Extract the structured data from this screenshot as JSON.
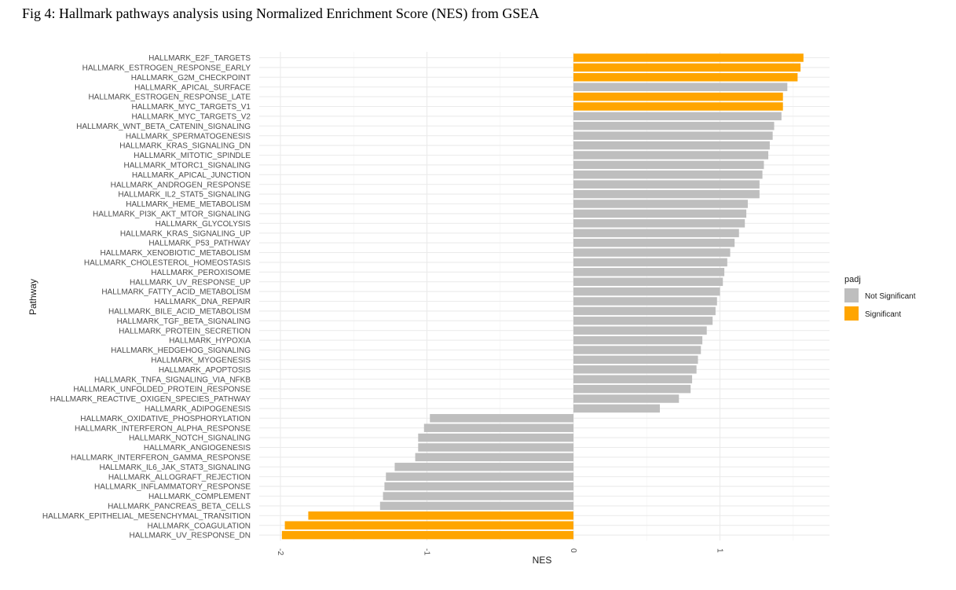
{
  "caption": "Fig 4: Hallmark pathways analysis using Normalized Enrichment Score (NES) from GSEA",
  "chart_data": {
    "type": "bar",
    "orientation": "horizontal",
    "xlabel": "NES",
    "ylabel": "Pathway",
    "xlim": [
      -2.0,
      1.75
    ],
    "x_ticks": [
      -2,
      -1,
      0,
      1
    ],
    "x_tick_labels": [
      "-2",
      "-1",
      "0",
      "1"
    ],
    "grid": true,
    "legend": {
      "title": "padj",
      "position": "right",
      "entries": [
        {
          "label": "Not Significant",
          "color": "#bebebe"
        },
        {
          "label": "Significant",
          "color": "#ffa500"
        }
      ]
    },
    "colors": {
      "Not Significant": "#bebebe",
      "Significant": "#ffa500"
    },
    "bars": [
      {
        "pathway": "HALLMARK_E2F_TARGETS",
        "nes": 1.57,
        "padj": "Significant"
      },
      {
        "pathway": "HALLMARK_ESTROGEN_RESPONSE_EARLY",
        "nes": 1.55,
        "padj": "Significant"
      },
      {
        "pathway": "HALLMARK_G2M_CHECKPOINT",
        "nes": 1.53,
        "padj": "Significant"
      },
      {
        "pathway": "HALLMARK_APICAL_SURFACE",
        "nes": 1.46,
        "padj": "Not Significant"
      },
      {
        "pathway": "HALLMARK_ESTROGEN_RESPONSE_LATE",
        "nes": 1.43,
        "padj": "Significant"
      },
      {
        "pathway": "HALLMARK_MYC_TARGETS_V1",
        "nes": 1.43,
        "padj": "Significant"
      },
      {
        "pathway": "HALLMARK_MYC_TARGETS_V2",
        "nes": 1.42,
        "padj": "Not Significant"
      },
      {
        "pathway": "HALLMARK_WNT_BETA_CATENIN_SIGNALING",
        "nes": 1.37,
        "padj": "Not Significant"
      },
      {
        "pathway": "HALLMARK_SPERMATOGENESIS",
        "nes": 1.36,
        "padj": "Not Significant"
      },
      {
        "pathway": "HALLMARK_KRAS_SIGNALING_DN",
        "nes": 1.34,
        "padj": "Not Significant"
      },
      {
        "pathway": "HALLMARK_MITOTIC_SPINDLE",
        "nes": 1.33,
        "padj": "Not Significant"
      },
      {
        "pathway": "HALLMARK_MTORC1_SIGNALING",
        "nes": 1.3,
        "padj": "Not Significant"
      },
      {
        "pathway": "HALLMARK_APICAL_JUNCTION",
        "nes": 1.29,
        "padj": "Not Significant"
      },
      {
        "pathway": "HALLMARK_ANDROGEN_RESPONSE",
        "nes": 1.27,
        "padj": "Not Significant"
      },
      {
        "pathway": "HALLMARK_IL2_STAT5_SIGNALING",
        "nes": 1.27,
        "padj": "Not Significant"
      },
      {
        "pathway": "HALLMARK_HEME_METABOLISM",
        "nes": 1.19,
        "padj": "Not Significant"
      },
      {
        "pathway": "HALLMARK_PI3K_AKT_MTOR_SIGNALING",
        "nes": 1.18,
        "padj": "Not Significant"
      },
      {
        "pathway": "HALLMARK_GLYCOLYSIS",
        "nes": 1.17,
        "padj": "Not Significant"
      },
      {
        "pathway": "HALLMARK_KRAS_SIGNALING_UP",
        "nes": 1.13,
        "padj": "Not Significant"
      },
      {
        "pathway": "HALLMARK_P53_PATHWAY",
        "nes": 1.1,
        "padj": "Not Significant"
      },
      {
        "pathway": "HALLMARK_XENOBIOTIC_METABOLISM",
        "nes": 1.07,
        "padj": "Not Significant"
      },
      {
        "pathway": "HALLMARK_CHOLESTEROL_HOMEOSTASIS",
        "nes": 1.05,
        "padj": "Not Significant"
      },
      {
        "pathway": "HALLMARK_PEROXISOME",
        "nes": 1.03,
        "padj": "Not Significant"
      },
      {
        "pathway": "HALLMARK_UV_RESPONSE_UP",
        "nes": 1.02,
        "padj": "Not Significant"
      },
      {
        "pathway": "HALLMARK_FATTY_ACID_METABOLISM",
        "nes": 1.0,
        "padj": "Not Significant"
      },
      {
        "pathway": "HALLMARK_DNA_REPAIR",
        "nes": 0.98,
        "padj": "Not Significant"
      },
      {
        "pathway": "HALLMARK_BILE_ACID_METABOLISM",
        "nes": 0.97,
        "padj": "Not Significant"
      },
      {
        "pathway": "HALLMARK_TGF_BETA_SIGNALING",
        "nes": 0.95,
        "padj": "Not Significant"
      },
      {
        "pathway": "HALLMARK_PROTEIN_SECRETION",
        "nes": 0.91,
        "padj": "Not Significant"
      },
      {
        "pathway": "HALLMARK_HYPOXIA",
        "nes": 0.88,
        "padj": "Not Significant"
      },
      {
        "pathway": "HALLMARK_HEDGEHOG_SIGNALING",
        "nes": 0.87,
        "padj": "Not Significant"
      },
      {
        "pathway": "HALLMARK_MYOGENESIS",
        "nes": 0.85,
        "padj": "Not Significant"
      },
      {
        "pathway": "HALLMARK_APOPTOSIS",
        "nes": 0.84,
        "padj": "Not Significant"
      },
      {
        "pathway": "HALLMARK_TNFA_SIGNALING_VIA_NFKB",
        "nes": 0.81,
        "padj": "Not Significant"
      },
      {
        "pathway": "HALLMARK_UNFOLDED_PROTEIN_RESPONSE",
        "nes": 0.8,
        "padj": "Not Significant"
      },
      {
        "pathway": "HALLMARK_REACTIVE_OXIGEN_SPECIES_PATHWAY",
        "nes": 0.72,
        "padj": "Not Significant"
      },
      {
        "pathway": "HALLMARK_ADIPOGENESIS",
        "nes": 0.59,
        "padj": "Not Significant"
      },
      {
        "pathway": "HALLMARK_OXIDATIVE_PHOSPHORYLATION",
        "nes": -0.98,
        "padj": "Not Significant"
      },
      {
        "pathway": "HALLMARK_INTERFERON_ALPHA_RESPONSE",
        "nes": -1.02,
        "padj": "Not Significant"
      },
      {
        "pathway": "HALLMARK_NOTCH_SIGNALING",
        "nes": -1.06,
        "padj": "Not Significant"
      },
      {
        "pathway": "HALLMARK_ANGIOGENESIS",
        "nes": -1.06,
        "padj": "Not Significant"
      },
      {
        "pathway": "HALLMARK_INTERFERON_GAMMA_RESPONSE",
        "nes": -1.08,
        "padj": "Not Significant"
      },
      {
        "pathway": "HALLMARK_IL6_JAK_STAT3_SIGNALING",
        "nes": -1.22,
        "padj": "Not Significant"
      },
      {
        "pathway": "HALLMARK_ALLOGRAFT_REJECTION",
        "nes": -1.28,
        "padj": "Not Significant"
      },
      {
        "pathway": "HALLMARK_INFLAMMATORY_RESPONSE",
        "nes": -1.29,
        "padj": "Not Significant"
      },
      {
        "pathway": "HALLMARK_COMPLEMENT",
        "nes": -1.3,
        "padj": "Not Significant"
      },
      {
        "pathway": "HALLMARK_PANCREAS_BETA_CELLS",
        "nes": -1.32,
        "padj": "Not Significant"
      },
      {
        "pathway": "HALLMARK_EPITHELIAL_MESENCHYMAL_TRANSITION",
        "nes": -1.81,
        "padj": "Significant"
      },
      {
        "pathway": "HALLMARK_COAGULATION",
        "nes": -1.97,
        "padj": "Significant"
      },
      {
        "pathway": "HALLMARK_UV_RESPONSE_DN",
        "nes": -1.99,
        "padj": "Significant"
      }
    ]
  }
}
